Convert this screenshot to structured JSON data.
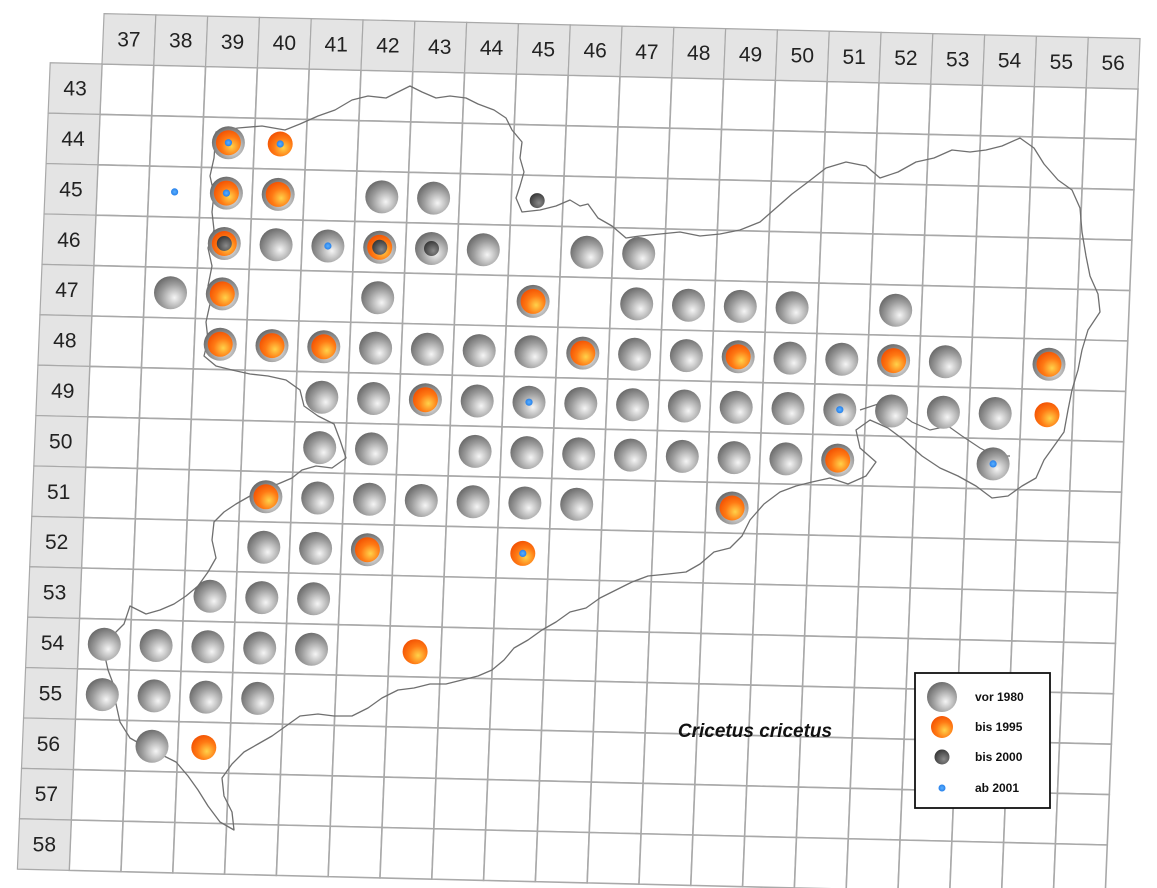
{
  "columns": [
    "37",
    "38",
    "39",
    "40",
    "41",
    "42",
    "43",
    "44",
    "45",
    "46",
    "47",
    "48",
    "49",
    "50",
    "51",
    "52",
    "53",
    "54",
    "55",
    "56"
  ],
  "rows": [
    "43",
    "44",
    "45",
    "46",
    "47",
    "48",
    "49",
    "50",
    "51",
    "52",
    "53",
    "54",
    "55",
    "56",
    "57",
    "58"
  ],
  "species": "Cricetus cricetus",
  "legend": [
    {
      "key": "vor1980",
      "label": "vor 1980"
    },
    {
      "key": "bis1995",
      "label": "bis 1995"
    },
    {
      "key": "bis2000",
      "label": "bis 2000"
    },
    {
      "key": "ab2001",
      "label": "ab  2001"
    }
  ],
  "colors": {
    "vor1980": "#8a8a8a",
    "bis1995": "#ff6a10",
    "bis2000": "#444444",
    "ab2001": "#2a8cff",
    "grid": "#a9a9a9",
    "header": "#e4e4e4",
    "border": "#6a6a6a"
  },
  "records": [
    {
      "col": "39",
      "row": "44",
      "periods": [
        "vor1980",
        "bis1995",
        "ab2001"
      ]
    },
    {
      "col": "40",
      "row": "44",
      "periods": [
        "bis1995",
        "ab2001"
      ]
    },
    {
      "col": "38",
      "row": "45",
      "periods": [
        "ab2001"
      ]
    },
    {
      "col": "39",
      "row": "45",
      "periods": [
        "vor1980",
        "bis1995",
        "ab2001"
      ]
    },
    {
      "col": "40",
      "row": "45",
      "periods": [
        "vor1980",
        "bis1995"
      ]
    },
    {
      "col": "42",
      "row": "45",
      "periods": [
        "vor1980"
      ]
    },
    {
      "col": "43",
      "row": "45",
      "periods": [
        "vor1980"
      ]
    },
    {
      "col": "45",
      "row": "45",
      "periods": [
        "bis2000"
      ]
    },
    {
      "col": "39",
      "row": "46",
      "periods": [
        "vor1980",
        "bis1995",
        "bis2000"
      ]
    },
    {
      "col": "40",
      "row": "46",
      "periods": [
        "vor1980"
      ]
    },
    {
      "col": "41",
      "row": "46",
      "periods": [
        "vor1980",
        "ab2001"
      ]
    },
    {
      "col": "42",
      "row": "46",
      "periods": [
        "vor1980",
        "bis1995",
        "bis2000"
      ]
    },
    {
      "col": "43",
      "row": "46",
      "periods": [
        "vor1980",
        "bis2000"
      ]
    },
    {
      "col": "44",
      "row": "46",
      "periods": [
        "vor1980"
      ]
    },
    {
      "col": "46",
      "row": "46",
      "periods": [
        "vor1980"
      ]
    },
    {
      "col": "47",
      "row": "46",
      "periods": [
        "vor1980"
      ]
    },
    {
      "col": "38",
      "row": "47",
      "periods": [
        "vor1980"
      ]
    },
    {
      "col": "39",
      "row": "47",
      "periods": [
        "vor1980",
        "bis1995"
      ]
    },
    {
      "col": "42",
      "row": "47",
      "periods": [
        "vor1980"
      ]
    },
    {
      "col": "45",
      "row": "47",
      "periods": [
        "vor1980",
        "bis1995"
      ]
    },
    {
      "col": "47",
      "row": "47",
      "periods": [
        "vor1980"
      ]
    },
    {
      "col": "48",
      "row": "47",
      "periods": [
        "vor1980"
      ]
    },
    {
      "col": "49",
      "row": "47",
      "periods": [
        "vor1980"
      ]
    },
    {
      "col": "50",
      "row": "47",
      "periods": [
        "vor1980"
      ]
    },
    {
      "col": "52",
      "row": "47",
      "periods": [
        "vor1980"
      ]
    },
    {
      "col": "39",
      "row": "48",
      "periods": [
        "vor1980",
        "bis1995"
      ]
    },
    {
      "col": "40",
      "row": "48",
      "periods": [
        "vor1980",
        "bis1995"
      ]
    },
    {
      "col": "41",
      "row": "48",
      "periods": [
        "vor1980",
        "bis1995"
      ]
    },
    {
      "col": "42",
      "row": "48",
      "periods": [
        "vor1980"
      ]
    },
    {
      "col": "43",
      "row": "48",
      "periods": [
        "vor1980"
      ]
    },
    {
      "col": "44",
      "row": "48",
      "periods": [
        "vor1980"
      ]
    },
    {
      "col": "45",
      "row": "48",
      "periods": [
        "vor1980"
      ]
    },
    {
      "col": "46",
      "row": "48",
      "periods": [
        "vor1980",
        "bis1995"
      ]
    },
    {
      "col": "47",
      "row": "48",
      "periods": [
        "vor1980"
      ]
    },
    {
      "col": "48",
      "row": "48",
      "periods": [
        "vor1980"
      ]
    },
    {
      "col": "49",
      "row": "48",
      "periods": [
        "vor1980",
        "bis1995"
      ]
    },
    {
      "col": "50",
      "row": "48",
      "periods": [
        "vor1980"
      ]
    },
    {
      "col": "51",
      "row": "48",
      "periods": [
        "vor1980"
      ]
    },
    {
      "col": "52",
      "row": "48",
      "periods": [
        "vor1980",
        "bis1995"
      ]
    },
    {
      "col": "53",
      "row": "48",
      "periods": [
        "vor1980"
      ]
    },
    {
      "col": "55",
      "row": "48",
      "periods": [
        "vor1980",
        "bis1995"
      ]
    },
    {
      "col": "41",
      "row": "49",
      "periods": [
        "vor1980"
      ]
    },
    {
      "col": "42",
      "row": "49",
      "periods": [
        "vor1980"
      ]
    },
    {
      "col": "43",
      "row": "49",
      "periods": [
        "vor1980",
        "bis1995"
      ]
    },
    {
      "col": "44",
      "row": "49",
      "periods": [
        "vor1980"
      ]
    },
    {
      "col": "45",
      "row": "49",
      "periods": [
        "vor1980",
        "ab2001"
      ]
    },
    {
      "col": "46",
      "row": "49",
      "periods": [
        "vor1980"
      ]
    },
    {
      "col": "47",
      "row": "49",
      "periods": [
        "vor1980"
      ]
    },
    {
      "col": "48",
      "row": "49",
      "periods": [
        "vor1980"
      ]
    },
    {
      "col": "49",
      "row": "49",
      "periods": [
        "vor1980"
      ]
    },
    {
      "col": "50",
      "row": "49",
      "periods": [
        "vor1980"
      ]
    },
    {
      "col": "51",
      "row": "49",
      "periods": [
        "vor1980",
        "ab2001"
      ]
    },
    {
      "col": "52",
      "row": "49",
      "periods": [
        "vor1980"
      ]
    },
    {
      "col": "53",
      "row": "49",
      "periods": [
        "vor1980"
      ]
    },
    {
      "col": "54",
      "row": "49",
      "periods": [
        "vor1980"
      ]
    },
    {
      "col": "55",
      "row": "49",
      "periods": [
        "bis1995"
      ]
    },
    {
      "col": "41",
      "row": "50",
      "periods": [
        "vor1980"
      ]
    },
    {
      "col": "42",
      "row": "50",
      "periods": [
        "vor1980"
      ]
    },
    {
      "col": "44",
      "row": "50",
      "periods": [
        "vor1980"
      ]
    },
    {
      "col": "45",
      "row": "50",
      "periods": [
        "vor1980"
      ]
    },
    {
      "col": "46",
      "row": "50",
      "periods": [
        "vor1980"
      ]
    },
    {
      "col": "47",
      "row": "50",
      "periods": [
        "vor1980"
      ]
    },
    {
      "col": "48",
      "row": "50",
      "periods": [
        "vor1980"
      ]
    },
    {
      "col": "49",
      "row": "50",
      "periods": [
        "vor1980"
      ]
    },
    {
      "col": "50",
      "row": "50",
      "periods": [
        "vor1980"
      ]
    },
    {
      "col": "51",
      "row": "50",
      "periods": [
        "vor1980",
        "bis1995"
      ]
    },
    {
      "col": "54",
      "row": "50",
      "periods": [
        "vor1980",
        "ab2001"
      ]
    },
    {
      "col": "40",
      "row": "51",
      "periods": [
        "vor1980",
        "bis1995"
      ]
    },
    {
      "col": "41",
      "row": "51",
      "periods": [
        "vor1980"
      ]
    },
    {
      "col": "42",
      "row": "51",
      "periods": [
        "vor1980"
      ]
    },
    {
      "col": "43",
      "row": "51",
      "periods": [
        "vor1980"
      ]
    },
    {
      "col": "44",
      "row": "51",
      "periods": [
        "vor1980"
      ]
    },
    {
      "col": "45",
      "row": "51",
      "periods": [
        "vor1980"
      ]
    },
    {
      "col": "46",
      "row": "51",
      "periods": [
        "vor1980"
      ]
    },
    {
      "col": "49",
      "row": "51",
      "periods": [
        "vor1980",
        "bis1995"
      ]
    },
    {
      "col": "40",
      "row": "52",
      "periods": [
        "vor1980"
      ]
    },
    {
      "col": "41",
      "row": "52",
      "periods": [
        "vor1980"
      ]
    },
    {
      "col": "42",
      "row": "52",
      "periods": [
        "vor1980",
        "bis1995"
      ]
    },
    {
      "col": "45",
      "row": "52",
      "periods": [
        "bis1995",
        "ab2001"
      ]
    },
    {
      "col": "39",
      "row": "53",
      "periods": [
        "vor1980"
      ]
    },
    {
      "col": "40",
      "row": "53",
      "periods": [
        "vor1980"
      ]
    },
    {
      "col": "41",
      "row": "53",
      "periods": [
        "vor1980"
      ]
    },
    {
      "col": "37",
      "row": "54",
      "periods": [
        "vor1980"
      ]
    },
    {
      "col": "38",
      "row": "54",
      "periods": [
        "vor1980"
      ]
    },
    {
      "col": "39",
      "row": "54",
      "periods": [
        "vor1980"
      ]
    },
    {
      "col": "40",
      "row": "54",
      "periods": [
        "vor1980"
      ]
    },
    {
      "col": "41",
      "row": "54",
      "periods": [
        "vor1980"
      ]
    },
    {
      "col": "43",
      "row": "54",
      "periods": [
        "bis1995"
      ]
    },
    {
      "col": "37",
      "row": "55",
      "periods": [
        "vor1980"
      ]
    },
    {
      "col": "38",
      "row": "55",
      "periods": [
        "vor1980"
      ]
    },
    {
      "col": "39",
      "row": "55",
      "periods": [
        "vor1980"
      ]
    },
    {
      "col": "40",
      "row": "55",
      "periods": [
        "vor1980"
      ]
    },
    {
      "col": "38",
      "row": "56",
      "periods": [
        "vor1980"
      ]
    },
    {
      "col": "39",
      "row": "56",
      "periods": [
        "bis1995"
      ]
    }
  ]
}
